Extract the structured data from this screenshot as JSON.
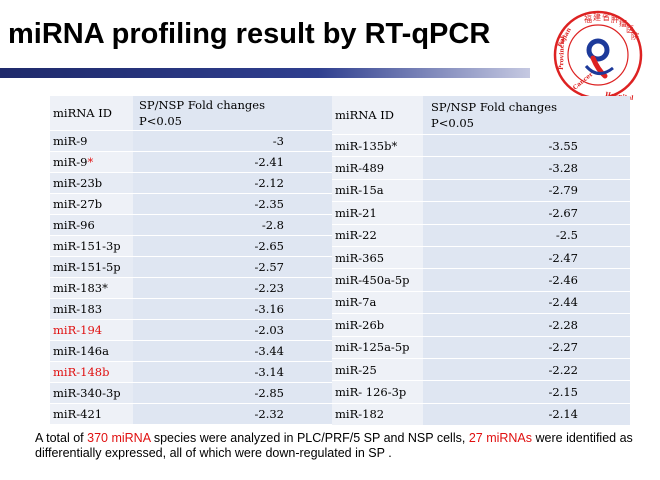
{
  "slide": {
    "title": "miRNA profiling result by RT-qPCR",
    "logo_text": "福建省肿瘤医院 Fujian Provincial Cancer Hospital",
    "colors": {
      "accent_bar": "#2f3f8f",
      "highlight": "#e01010",
      "table_fill": "#dfe6f2"
    }
  },
  "table_left": {
    "header": {
      "id": "miRNA ID",
      "val_line1": "SP/NSP Fold changes",
      "val_line2": "P<0.05"
    },
    "rows": [
      {
        "id": "miR-9",
        "star": "",
        "val": "-3",
        "red": false
      },
      {
        "id": "miR-9",
        "star": "*",
        "val": "-2.41",
        "red": false
      },
      {
        "id": "miR-23b",
        "star": "",
        "val": "-2.12",
        "red": false
      },
      {
        "id": "miR-27b",
        "star": "",
        "val": "-2.35",
        "red": false
      },
      {
        "id": "miR-96",
        "star": "",
        "val": "-2.8",
        "red": false
      },
      {
        "id": "miR-151-3p",
        "star": "",
        "val": "-2.65",
        "red": false
      },
      {
        "id": "miR-151-5p",
        "star": "",
        "val": "-2.57",
        "red": false
      },
      {
        "id": "miR-183*",
        "star": "",
        "val": "-2.23",
        "red": false
      },
      {
        "id": "miR-183",
        "star": "",
        "val": "-3.16",
        "red": false
      },
      {
        "id": "miR-194",
        "star": "",
        "val": "-2.03",
        "red": true
      },
      {
        "id": "miR-146a",
        "star": "",
        "val": "-3.44",
        "red": false
      },
      {
        "id": "miR-148b",
        "star": "",
        "val": "-3.14",
        "red": true
      },
      {
        "id": "miR-340-3p",
        "star": "",
        "val": "-2.85",
        "red": false
      },
      {
        "id": "miR-421",
        "star": "",
        "val": "-2.32",
        "red": false
      }
    ]
  },
  "table_right": {
    "header": {
      "id": "miRNA ID",
      "val_line1": "SP/NSP Fold changes",
      "val_line2": "P<0.05"
    },
    "rows": [
      {
        "id": "miR-135b*",
        "val": "-3.55"
      },
      {
        "id": "miR-489",
        "val": "-3.28"
      },
      {
        "id": "miR-15a",
        "val": "-2.79"
      },
      {
        "id": "miR-21",
        "val": "-2.67"
      },
      {
        "id": "miR-22",
        "val": "-2.5"
      },
      {
        "id": "miR-365",
        "val": "-2.47"
      },
      {
        "id": "miR-450a-5p",
        "val": "-2.46"
      },
      {
        "id": "miR-7a",
        "val": "-2.44"
      },
      {
        "id": "miR-26b",
        "val": "-2.28"
      },
      {
        "id": "miR-125a-5p",
        "val": "-2.27"
      },
      {
        "id": "miR-25",
        "val": "-2.22"
      },
      {
        "id": "miR- 126-3p",
        "val": "-2.15"
      },
      {
        "id": "miR-182",
        "val": "-2.14"
      }
    ]
  },
  "caption": {
    "p1": "A total of ",
    "p2": "370 miRNA",
    "p3": " species were analyzed in PLC/PRF/5  SP and NSP cells, ",
    "p4": "27 miRNAs",
    "p5": " were identified as differentially expressed, all of which were down-regulated in SP ."
  }
}
